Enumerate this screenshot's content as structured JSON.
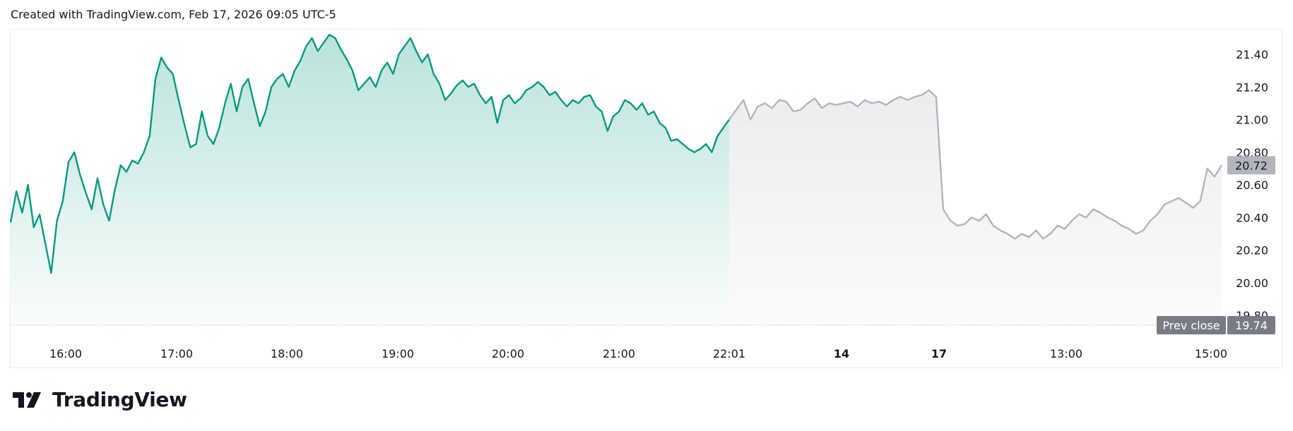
{
  "header": {
    "text": "Created with TradingView.com, Feb 17, 2026 09:05 UTC-5"
  },
  "brand": {
    "name": "TradingView",
    "logo_icon": "tradingview-logo-icon"
  },
  "colors": {
    "session_line": "#089981",
    "extended_line": "#b2b5be",
    "axis_text": "#131722",
    "price_label_bg": "#b2b5be",
    "prev_close_label_bg": "#787b86"
  },
  "chart_data": {
    "type": "area",
    "y_axis_position": "right",
    "ylim": [
      19.74,
      21.56
    ],
    "y_ticks": [
      "21.40",
      "21.20",
      "21.00",
      "20.80",
      "20.60",
      "20.40",
      "20.20",
      "20.00",
      "19.80"
    ],
    "x_ticks": [
      "16:00",
      "17:00",
      "18:00",
      "19:00",
      "20:00",
      "21:00",
      "22:01",
      "14",
      "17",
      "13:00",
      "15:00"
    ],
    "current_price": {
      "value": 20.72,
      "label": "20.72"
    },
    "prev_close": {
      "value": 19.74,
      "label": "19.74",
      "text": "Prev close"
    },
    "series": [
      {
        "segment": "regular",
        "values": [
          20.37,
          20.56,
          20.43,
          20.6,
          20.34,
          20.42,
          20.24,
          20.06,
          20.38,
          20.5,
          20.74,
          20.8,
          20.66,
          20.55,
          20.45,
          20.64,
          20.48,
          20.38,
          20.57,
          20.72,
          20.68,
          20.75,
          20.73,
          20.8,
          20.9,
          21.25,
          21.38,
          21.32,
          21.28,
          21.12,
          20.97,
          20.83,
          20.85,
          21.05,
          20.9,
          20.85,
          20.95,
          21.1,
          21.22,
          21.05,
          21.2,
          21.25,
          21.1,
          20.96,
          21.05,
          21.2,
          21.25,
          21.28,
          21.2,
          21.3,
          21.36,
          21.45,
          21.5,
          21.42,
          21.47,
          21.52,
          21.5,
          21.43,
          21.37,
          21.3,
          21.18,
          21.22,
          21.26,
          21.2,
          21.3,
          21.35,
          21.28,
          21.4,
          21.45,
          21.5,
          21.42,
          21.35,
          21.4,
          21.28,
          21.22,
          21.12,
          21.16,
          21.21,
          21.24,
          21.2,
          21.22,
          21.15,
          21.1,
          21.14,
          20.98,
          21.12,
          21.15,
          21.1,
          21.13,
          21.18,
          21.2,
          21.23,
          21.2,
          21.15,
          21.17,
          21.12,
          21.08,
          21.12,
          21.1,
          21.14,
          21.15,
          21.08,
          21.05,
          20.93,
          21.02,
          21.05,
          21.12,
          21.1,
          21.06,
          21.1,
          21.03,
          21.05,
          20.98,
          20.95,
          20.87,
          20.88,
          20.85,
          20.82,
          20.8,
          20.82,
          20.85,
          20.8,
          20.9,
          20.95,
          21.0
        ],
        "x_start": "15:30",
        "x_end": "22:01"
      },
      {
        "segment": "extended",
        "values": [
          21.0,
          21.06,
          21.12,
          21.0,
          21.08,
          21.1,
          21.07,
          21.12,
          21.11,
          21.05,
          21.06,
          21.1,
          21.13,
          21.07,
          21.1,
          21.09,
          21.1,
          21.11,
          21.08,
          21.12,
          21.1,
          21.11,
          21.09,
          21.12,
          21.14,
          21.12,
          21.14,
          21.15,
          21.18,
          21.14,
          20.45,
          20.38,
          20.35,
          20.36,
          20.4,
          20.38,
          20.42,
          20.35,
          20.32,
          20.3,
          20.27,
          20.3,
          20.28,
          20.32,
          20.27,
          20.3,
          20.35,
          20.33,
          20.38,
          20.42,
          20.4,
          20.45,
          20.43,
          20.4,
          20.38,
          20.35,
          20.33,
          20.3,
          20.32,
          20.38,
          20.42,
          20.48,
          20.5,
          20.52,
          20.49,
          20.46,
          20.5,
          20.7,
          20.65,
          20.72
        ]
      }
    ]
  }
}
